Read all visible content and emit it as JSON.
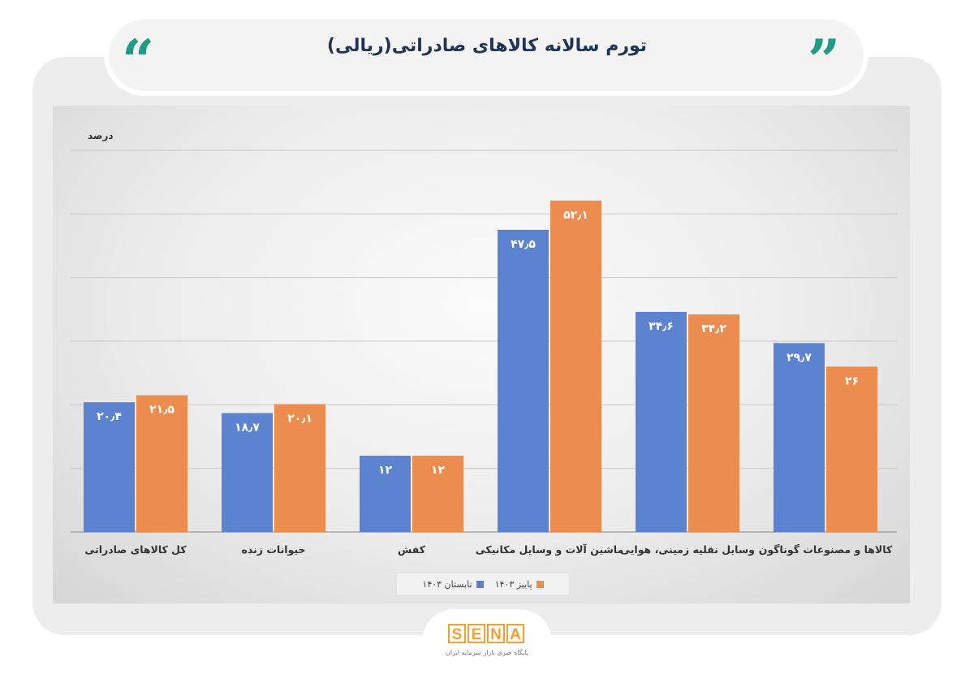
{
  "title": "تورم سالانه کالاهای صادراتی(ریالی)",
  "quote_glyph_left": "“",
  "quote_glyph_right": "”",
  "colors": {
    "accent": "#1f9b86",
    "title": "#1e3554",
    "series1": "#5b83cf",
    "series2": "#ec8c4f",
    "logo": "#f0a132"
  },
  "logo": {
    "letters": [
      "S",
      "E",
      "N",
      "A"
    ],
    "subtitle": "پایگاه خبری بازار سرمایه ایران"
  },
  "chart_data": {
    "type": "bar",
    "ylabel": "درصد",
    "ylim": [
      0,
      60
    ],
    "grid": true,
    "legend_position": "bottom",
    "categories": [
      "کل کالاهای صادراتی",
      "حیوانات زنده",
      "کفش",
      "ماشین آلات و وسایل مکانیکی",
      "وسایل نقلیه زمینی، هوایی",
      "کالاها و مصنوعات گوناگون"
    ],
    "series": [
      {
        "name": "تابستان ۱۴۰۳",
        "color": "#5b83cf",
        "values": [
          20.4,
          18.7,
          12,
          47.5,
          34.6,
          29.7
        ],
        "labels": [
          "۲۰٫۴",
          "۱۸٫۷",
          "۱۲",
          "۴۷٫۵",
          "۳۴٫۶",
          "۲۹٫۷"
        ]
      },
      {
        "name": "پاییز ۱۴۰۳",
        "color": "#ec8c4f",
        "values": [
          21.5,
          20.1,
          12,
          52.1,
          34.2,
          26
        ],
        "labels": [
          "۲۱٫۵",
          "۲۰٫۱",
          "۱۲",
          "۵۲٫۱",
          "۳۴٫۲",
          "۲۶"
        ]
      }
    ]
  }
}
